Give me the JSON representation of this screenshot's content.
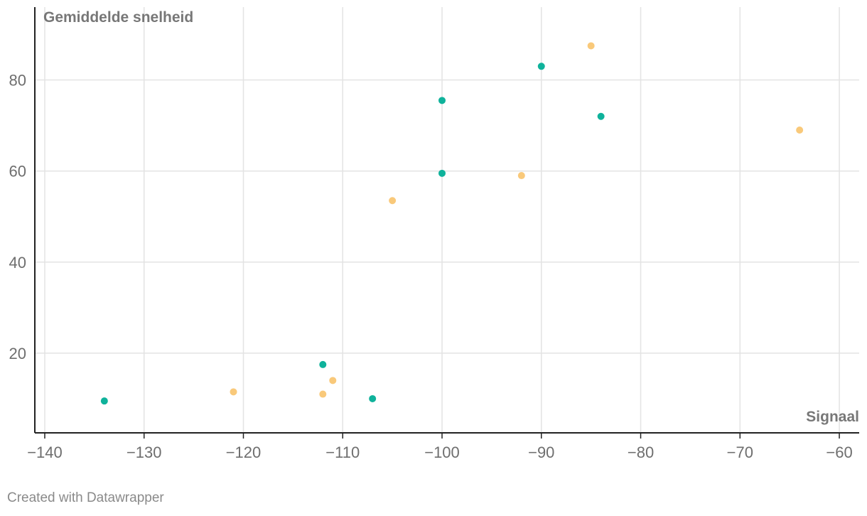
{
  "chart_data": {
    "type": "scatter",
    "xlabel": "Signaal",
    "ylabel": "Gemiddelde snelheid",
    "xlim": [
      -141,
      -58
    ],
    "ylim": [
      2.5,
      96
    ],
    "x_ticks": [
      -140,
      -130,
      -120,
      -110,
      -100,
      -90,
      -80,
      -70,
      -60
    ],
    "x_tick_labels": [
      "−140",
      "−130",
      "−120",
      "−110",
      "−100",
      "−90",
      "−80",
      "−70",
      "−60"
    ],
    "y_ticks": [
      20,
      40,
      60,
      80
    ],
    "y_tick_labels": [
      "20",
      "40",
      "60",
      "80"
    ],
    "grid": true,
    "series": [
      {
        "color": "#0fb29b",
        "points": [
          {
            "x": -134,
            "y": 9.5
          },
          {
            "x": -112,
            "y": 17.5
          },
          {
            "x": -107,
            "y": 10
          },
          {
            "x": -100,
            "y": 59.5
          },
          {
            "x": -100,
            "y": 75.5
          },
          {
            "x": -90,
            "y": 83
          },
          {
            "x": -84,
            "y": 72
          }
        ]
      },
      {
        "color": "#f9c97a",
        "points": [
          {
            "x": -121,
            "y": 11.5
          },
          {
            "x": -112,
            "y": 11
          },
          {
            "x": -111,
            "y": 14
          },
          {
            "x": -105,
            "y": 53.5
          },
          {
            "x": -92,
            "y": 59
          },
          {
            "x": -85,
            "y": 87.5
          },
          {
            "x": -64,
            "y": 69
          }
        ]
      }
    ]
  },
  "footer": {
    "credit": "Created with Datawrapper"
  }
}
